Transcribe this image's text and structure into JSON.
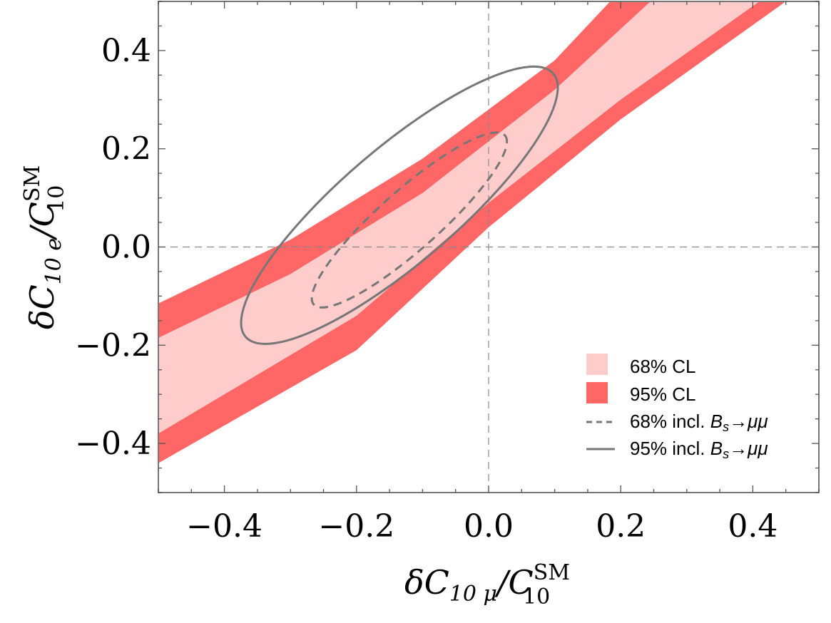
{
  "chart_data": {
    "type": "contour",
    "title": "",
    "xlabel": {
      "prefix": "δC",
      "sub": "10 μ",
      "mid": "/C",
      "sup": "SM",
      "sub2": "10"
    },
    "ylabel": {
      "prefix": "δC",
      "sub": "10 e",
      "mid": "/C",
      "sup": "SM",
      "sub2": "10"
    },
    "xlim": [
      -0.5,
      0.5
    ],
    "ylim": [
      -0.5,
      0.5
    ],
    "xticks": [
      -0.4,
      -0.2,
      0.0,
      0.2,
      0.4
    ],
    "yticks": [
      -0.4,
      -0.2,
      0.0,
      0.2,
      0.4
    ],
    "xtick_labels": [
      "−0.4",
      "−0.2",
      "0.0",
      "0.2",
      "0.4"
    ],
    "ytick_labels": [
      "−0.4",
      "−0.2",
      "0.0",
      "0.2",
      "0.4"
    ],
    "reference_lines": {
      "x": 0.0,
      "y": 0.0,
      "style": "dashed"
    },
    "colors": {
      "band68": "#ffcccc",
      "band95": "#ff6666",
      "contour": "#777777",
      "frame": "#777777"
    },
    "series": [
      {
        "name": "95% CL",
        "kind": "band",
        "upper": [
          [
            -0.5,
            -0.115
          ],
          [
            -0.3,
            0.015
          ],
          [
            -0.1,
            0.18
          ],
          [
            0.1,
            0.38
          ],
          [
            0.184,
            0.5
          ]
        ],
        "lower": [
          [
            -0.5,
            -0.44
          ],
          [
            -0.2,
            -0.21
          ],
          [
            0.0,
            0.04
          ],
          [
            0.2,
            0.26
          ],
          [
            0.45,
            0.5
          ]
        ]
      },
      {
        "name": "68% CL",
        "kind": "band",
        "upper": [
          [
            -0.5,
            -0.185
          ],
          [
            -0.3,
            -0.055
          ],
          [
            -0.1,
            0.11
          ],
          [
            0.1,
            0.32
          ],
          [
            0.245,
            0.5
          ]
        ],
        "lower": [
          [
            -0.5,
            -0.38
          ],
          [
            -0.2,
            -0.14
          ],
          [
            0.0,
            0.09
          ],
          [
            0.2,
            0.3
          ],
          [
            0.41,
            0.5
          ]
        ]
      },
      {
        "name": "68% incl. Bs→μμ",
        "legend_label": {
          "pre": "68% incl. ",
          "b": "B",
          "s": "s",
          "post": "→μμ"
        },
        "kind": "contour",
        "style": "dashed",
        "center": [
          -0.12,
          0.055
        ],
        "semi_major": 0.225,
        "semi_minor": 0.05,
        "angle_deg": 50
      },
      {
        "name": "95% incl. Bs→μμ",
        "legend_label": {
          "pre": "95% incl. ",
          "b": "B",
          "s": "s",
          "post": "→μμ"
        },
        "kind": "contour",
        "style": "solid",
        "center": [
          -0.135,
          0.085
        ],
        "semi_major": 0.355,
        "semi_minor": 0.097,
        "angle_deg": 49
      }
    ],
    "legend": {
      "position": "bottom-right",
      "entries": [
        {
          "label": "68% CL",
          "marker": "box-68"
        },
        {
          "label": "95% CL",
          "marker": "box-95"
        }
      ]
    }
  }
}
